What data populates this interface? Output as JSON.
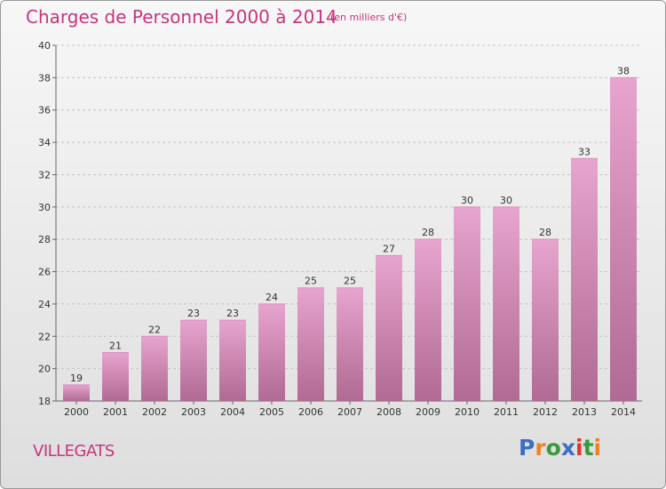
{
  "header": {
    "title": "Charges de Personnel 2000 à 2014",
    "subtitle": "(en milliers d'€)"
  },
  "footer": {
    "place": "VILLEGATS",
    "logo": "Proxiti"
  },
  "colors": {
    "accent": "#c8347e",
    "bar_top": "#e7a4ce",
    "bar_bottom": "#b06a93",
    "logo_letters": [
      "#3a6fc4",
      "#f0821e",
      "#3a9a3a",
      "#3a6fc4",
      "#e5332a",
      "#3a9a3a",
      "#f0821e"
    ]
  },
  "chart_data": {
    "type": "bar",
    "categories": [
      "2000",
      "2001",
      "2002",
      "2003",
      "2004",
      "2005",
      "2006",
      "2007",
      "2008",
      "2009",
      "2010",
      "2011",
      "2012",
      "2013",
      "2014"
    ],
    "values": [
      19,
      21,
      22,
      23,
      23,
      24,
      25,
      25,
      27,
      28,
      30,
      30,
      28,
      33,
      38
    ],
    "title": "Charges de Personnel 2000 à 2014",
    "xlabel": "",
    "ylabel": "",
    "ylim": [
      18,
      40
    ],
    "yticks": [
      18,
      20,
      22,
      24,
      26,
      28,
      30,
      32,
      34,
      36,
      38,
      40
    ],
    "grid": true
  }
}
